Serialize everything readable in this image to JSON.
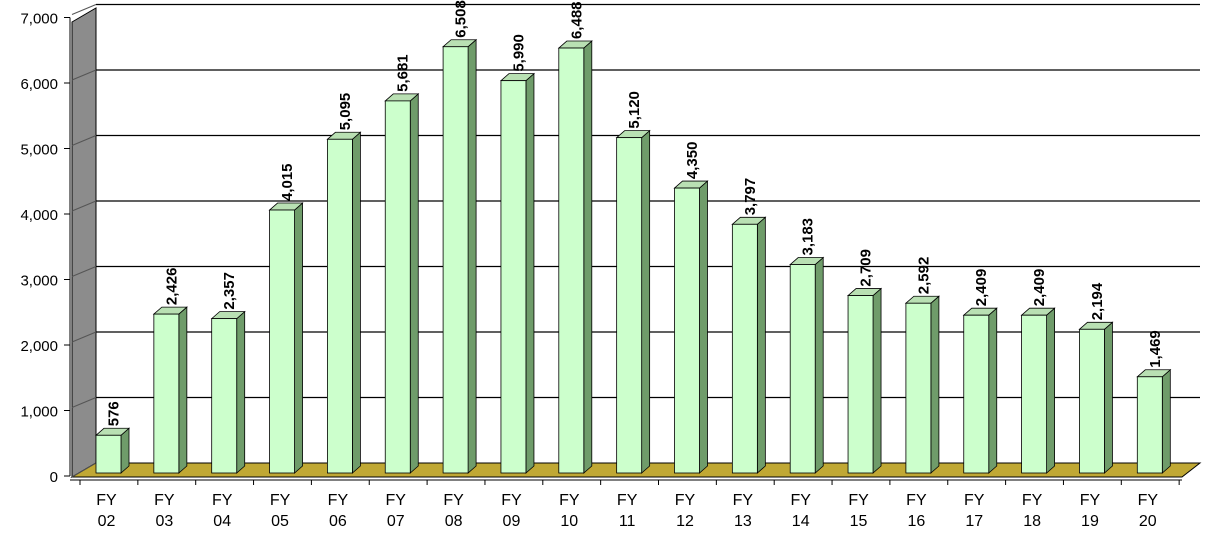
{
  "chart_data": {
    "type": "bar",
    "title": "",
    "xlabel": "",
    "ylabel": "",
    "categories": [
      [
        "FY",
        "02"
      ],
      [
        "FY",
        "03"
      ],
      [
        "FY",
        "04"
      ],
      [
        "FY",
        "05"
      ],
      [
        "FY",
        "06"
      ],
      [
        "FY",
        "07"
      ],
      [
        "FY",
        "08"
      ],
      [
        "FY",
        "09"
      ],
      [
        "FY",
        "10"
      ],
      [
        "FY",
        "11"
      ],
      [
        "FY",
        "12"
      ],
      [
        "FY",
        "13"
      ],
      [
        "FY",
        "14"
      ],
      [
        "FY",
        "15"
      ],
      [
        "FY",
        "16"
      ],
      [
        "FY",
        "17"
      ],
      [
        "FY",
        "18"
      ],
      [
        "FY",
        "19"
      ],
      [
        "FY",
        "20"
      ]
    ],
    "values": [
      576,
      2426,
      2357,
      4015,
      5095,
      5681,
      6508,
      5990,
      6488,
      5120,
      4350,
      3797,
      3183,
      2709,
      2592,
      2409,
      2409,
      2194,
      1469
    ],
    "data_labels": [
      "576",
      "2,426",
      "2,357",
      "4,015",
      "5,095",
      "5,681",
      "6,508",
      "5,990",
      "6,488",
      "5,120",
      "4,350",
      "3,797",
      "3,183",
      "2,709",
      "2,592",
      "2,409",
      "2,409",
      "2,194",
      "1,469"
    ],
    "ylim": [
      0,
      7000
    ],
    "yticks": [
      0,
      1000,
      2000,
      3000,
      4000,
      5000,
      6000,
      7000
    ],
    "ytick_labels": [
      "0",
      "1,000",
      "2,000",
      "3,000",
      "4,000",
      "5,000",
      "6,000",
      "7,000"
    ],
    "grid": true,
    "legend": "none",
    "style": "3d-column",
    "colors": {
      "bar_front": "#ccffcc",
      "bar_side": "#6f9c6a",
      "bar_top": "#b9e0b3",
      "wall": "#ffffff",
      "side_wall": "#8c8c8c",
      "floor": "#c0a834",
      "gridline": "#000000"
    }
  }
}
